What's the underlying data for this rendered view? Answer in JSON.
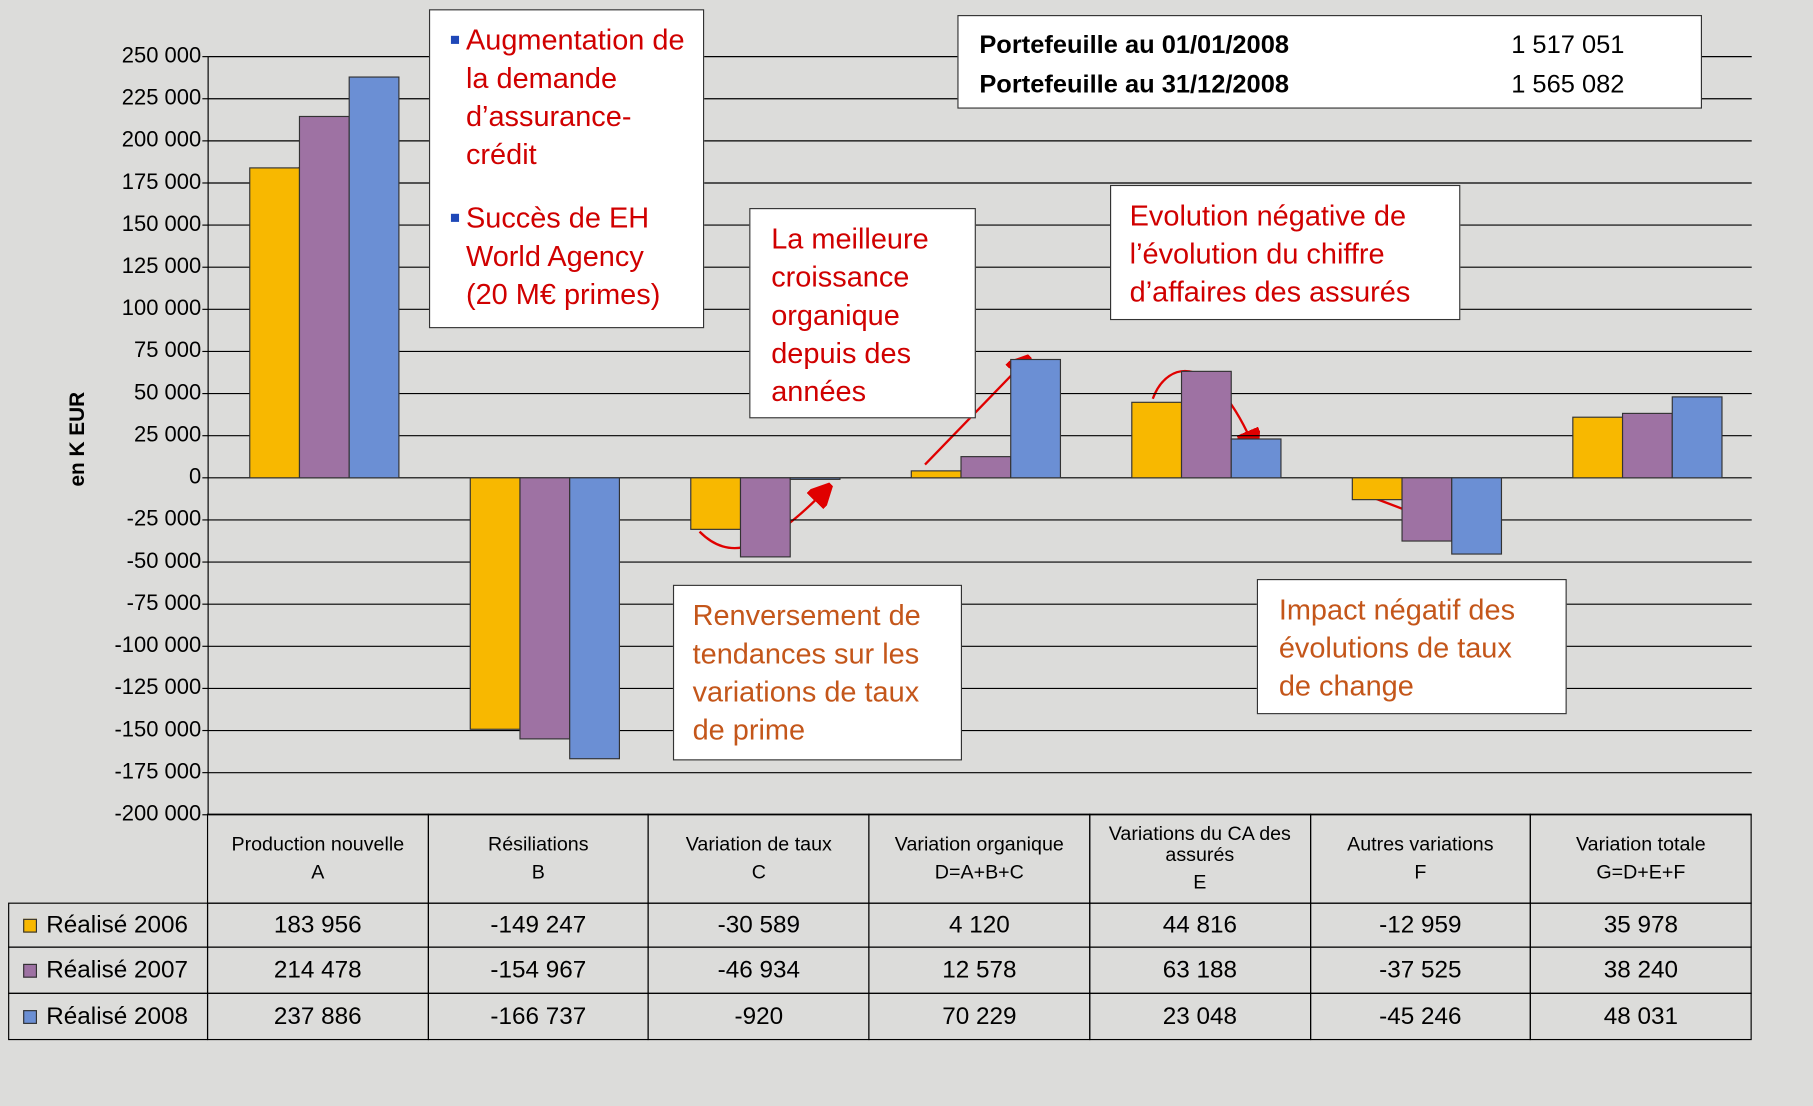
{
  "chart_data": {
    "type": "bar",
    "ylabel": "en K EUR",
    "categories": [
      "Production nouvelle",
      "Résiliations",
      "Variation de taux",
      "Variation organique",
      "Variations du CA des assurés",
      "Autres variations",
      "Variation totale"
    ],
    "category_codes": [
      "A",
      "B",
      "C",
      "D=A+B+C",
      "E",
      "F",
      "G=D+E+F"
    ],
    "series": [
      {
        "name": "Réalisé 2006",
        "color": "#f8b800",
        "values": [
          183956,
          -149247,
          -30589,
          4120,
          44816,
          -12959,
          35978
        ],
        "value_labels": [
          "183 956",
          "-149 247",
          "-30 589",
          "4 120",
          "44 816",
          "-12 959",
          "35 978"
        ]
      },
      {
        "name": "Réalisé 2007",
        "color": "#9e72a3",
        "values": [
          214478,
          -154967,
          -46934,
          12578,
          63188,
          -37525,
          38240
        ],
        "value_labels": [
          "214 478",
          "-154 967",
          "-46 934",
          "12 578",
          "63 188",
          "-37 525",
          "38 240"
        ]
      },
      {
        "name": "Réalisé 2008",
        "color": "#6b8fd4",
        "values": [
          237886,
          -166737,
          -920,
          70229,
          23048,
          -45246,
          48031
        ],
        "value_labels": [
          "237 886",
          "-166 737",
          "-920",
          "70 229",
          "23 048",
          "-45 246",
          "48 031"
        ]
      }
    ],
    "ylim": [
      -200000,
      250000
    ],
    "yticks": [
      {
        "value": -200000,
        "label": "-200 000"
      },
      {
        "value": -175000,
        "label": "-175 000"
      },
      {
        "value": -150000,
        "label": "-150 000"
      },
      {
        "value": -125000,
        "label": "-125 000"
      },
      {
        "value": -100000,
        "label": "-100 000"
      },
      {
        "value": -75000,
        "label": "-75 000"
      },
      {
        "value": -50000,
        "label": "-50 000"
      },
      {
        "value": -25000,
        "label": "-25 000"
      },
      0,
      {
        "value": 25000,
        "label": "25 000"
      },
      {
        "value": 50000,
        "label": "50 000"
      },
      {
        "value": 75000,
        "label": "75 000"
      },
      {
        "value": 100000,
        "label": "100 000"
      },
      {
        "value": 125000,
        "label": "125 000"
      },
      {
        "value": 150000,
        "label": "150 000"
      },
      {
        "value": 175000,
        "label": "175 000"
      },
      {
        "value": 200000,
        "label": "200 000"
      },
      {
        "value": 225000,
        "label": "225 000"
      },
      {
        "value": 250000,
        "label": "250 000"
      }
    ],
    "grid": true,
    "annotations": [
      {
        "items": [
          "Augmentation de la demande d’assurance-crédit",
          "Succès de EH World Agency (20 M€ primes)"
        ]
      },
      {
        "text": "La meilleure croissance organique depuis des années"
      },
      {
        "text": "Evolution négative de l’évolution du chiffre d’affaires des assurés"
      },
      {
        "text": "Renversement de tendances sur les variations de taux de prime"
      },
      {
        "text": "Impact négatif des évolutions de taux de change"
      }
    ]
  },
  "portfolio": [
    {
      "label": "Portefeuille au 01/01/2008",
      "value": "1 517 051"
    },
    {
      "label": "Portefeuille au 31/12/2008",
      "value": "1 565 082"
    }
  ]
}
